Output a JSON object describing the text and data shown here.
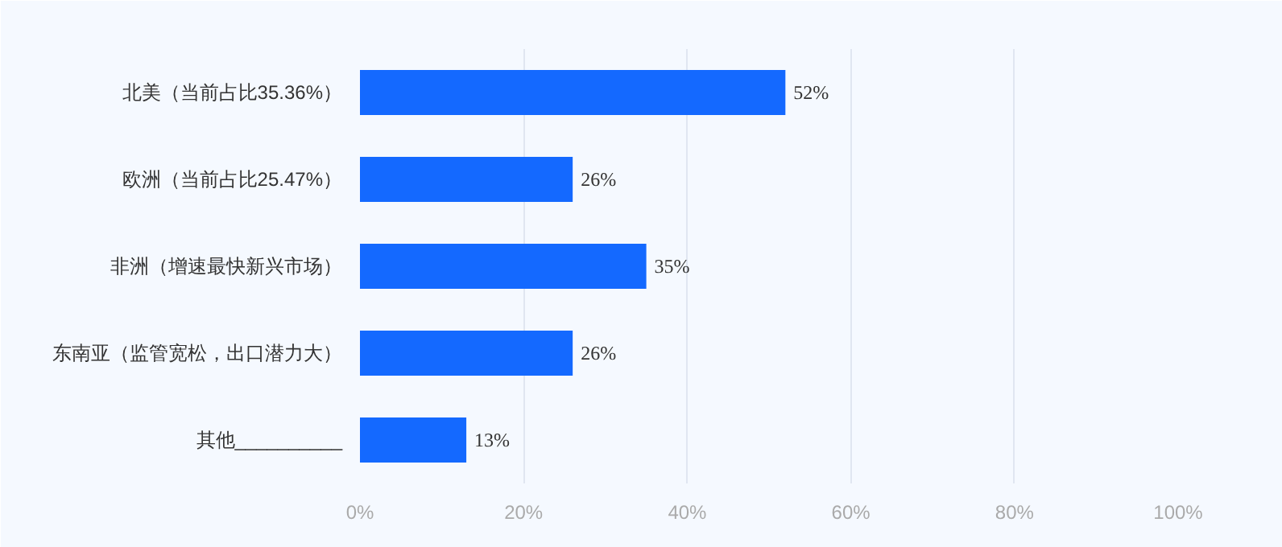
{
  "chart_data": {
    "type": "bar",
    "orientation": "horizontal",
    "categories": [
      "北美（当前占比35.36%）",
      "欧洲（当前占比25.47%）",
      "非洲（增速最快新兴市场）",
      "东南亚（监管宽松，出口潜力大）",
      "其他__________"
    ],
    "values": [
      52,
      26,
      35,
      26,
      13
    ],
    "value_labels": [
      "52%",
      "26%",
      "35%",
      "26%",
      "13%"
    ],
    "color": "#1469ff",
    "xlim": [
      0,
      100
    ],
    "xticks": [
      {
        "value": 0,
        "label": "0%"
      },
      {
        "value": 20,
        "label": "20%"
      },
      {
        "value": 40,
        "label": "40%"
      },
      {
        "value": 60,
        "label": "60%"
      },
      {
        "value": 80,
        "label": "80%"
      },
      {
        "value": 100,
        "label": "100%"
      }
    ],
    "grid": "x"
  }
}
